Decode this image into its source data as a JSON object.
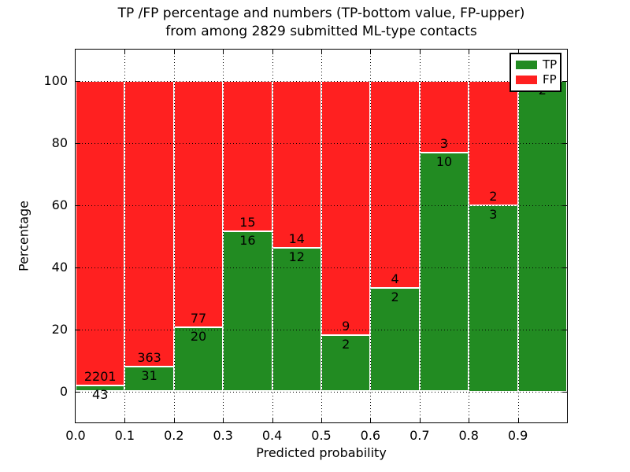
{
  "chart_data": {
    "type": "bar",
    "stacked": true,
    "title_line1": "TP /FP percentage and numbers (TP-bottom value, FP-upper)",
    "title_line2": "from among 2829 submitted ML-type contacts",
    "xlabel": "Predicted probability",
    "ylabel": "Percentage",
    "total_contacts": 2829,
    "xlim": [
      0,
      1
    ],
    "ylim": [
      -10,
      110
    ],
    "x_ticks": [
      0.0,
      0.1,
      0.2,
      0.3,
      0.4,
      0.5,
      0.6,
      0.7,
      0.8,
      0.9
    ],
    "x_tick_labels": [
      "0.0",
      "0.1",
      "0.2",
      "0.3",
      "0.4",
      "0.5",
      "0.6",
      "0.7",
      "0.8",
      "0.9"
    ],
    "y_ticks": [
      0,
      20,
      40,
      60,
      80,
      100
    ],
    "y_tick_labels": [
      "0",
      "20",
      "40",
      "60",
      "80",
      "100"
    ],
    "grid": true,
    "bar_unit": "percent of bin total",
    "colors": {
      "tp": "#228b22",
      "fp": "#ff2020",
      "bar_edge": "#ffffff"
    },
    "legend": {
      "position": "upper right",
      "entries": [
        {
          "label": "TP",
          "color": "#228b22"
        },
        {
          "label": "FP",
          "color": "#ff2020"
        }
      ]
    },
    "bins": [
      {
        "x0": 0.0,
        "x1": 0.1,
        "tp": 43,
        "fp": 2201
      },
      {
        "x0": 0.1,
        "x1": 0.2,
        "tp": 31,
        "fp": 363
      },
      {
        "x0": 0.2,
        "x1": 0.3,
        "tp": 20,
        "fp": 77
      },
      {
        "x0": 0.3,
        "x1": 0.4,
        "tp": 16,
        "fp": 15
      },
      {
        "x0": 0.4,
        "x1": 0.5,
        "tp": 12,
        "fp": 14
      },
      {
        "x0": 0.5,
        "x1": 0.6,
        "tp": 2,
        "fp": 9
      },
      {
        "x0": 0.6,
        "x1": 0.7,
        "tp": 2,
        "fp": 4
      },
      {
        "x0": 0.7,
        "x1": 0.8,
        "tp": 10,
        "fp": 3
      },
      {
        "x0": 0.8,
        "x1": 0.9,
        "tp": 3,
        "fp": 2
      },
      {
        "x0": 0.9,
        "x1": 1.0,
        "tp": 2,
        "fp": 0
      }
    ]
  }
}
